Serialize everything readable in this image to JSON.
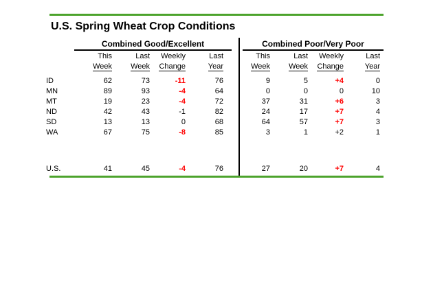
{
  "page": {
    "title": "U.S. Spring Wheat Crop Conditions",
    "accent_green": "#4CA32C",
    "highlight_red": "#FF0000"
  },
  "sections": [
    {
      "id": "good",
      "label": "Combined Good/Excellent"
    },
    {
      "id": "poor",
      "label": "Combined Poor/Very Poor"
    }
  ],
  "headers": {
    "line1": [
      "This",
      "Last",
      "Weekly",
      "Last"
    ],
    "line2": [
      "Week",
      "Week",
      "Change",
      "Year"
    ]
  },
  "rows": [
    {
      "label": "ID",
      "good": {
        "this_week": "62",
        "last_week": "73",
        "change": "-11",
        "change_red": true,
        "last_year": "76"
      },
      "poor": {
        "this_week": "9",
        "last_week": "5",
        "change": "+4",
        "change_red": true,
        "last_year": "0"
      }
    },
    {
      "label": "MN",
      "good": {
        "this_week": "89",
        "last_week": "93",
        "change": "-4",
        "change_red": true,
        "last_year": "64"
      },
      "poor": {
        "this_week": "0",
        "last_week": "0",
        "change": "0",
        "change_red": false,
        "last_year": "10"
      }
    },
    {
      "label": "MT",
      "good": {
        "this_week": "19",
        "last_week": "23",
        "change": "-4",
        "change_red": true,
        "last_year": "72"
      },
      "poor": {
        "this_week": "37",
        "last_week": "31",
        "change": "+6",
        "change_red": true,
        "last_year": "3"
      }
    },
    {
      "label": "ND",
      "good": {
        "this_week": "42",
        "last_week": "43",
        "change": "-1",
        "change_red": false,
        "last_year": "82"
      },
      "poor": {
        "this_week": "24",
        "last_week": "17",
        "change": "+7",
        "change_red": true,
        "last_year": "4"
      }
    },
    {
      "label": "SD",
      "good": {
        "this_week": "13",
        "last_week": "13",
        "change": "0",
        "change_red": false,
        "last_year": "68"
      },
      "poor": {
        "this_week": "64",
        "last_week": "57",
        "change": "+7",
        "change_red": true,
        "last_year": "3"
      }
    },
    {
      "label": "WA",
      "good": {
        "this_week": "67",
        "last_week": "75",
        "change": "-8",
        "change_red": true,
        "last_year": "85"
      },
      "poor": {
        "this_week": "3",
        "last_week": "1",
        "change": "+2",
        "change_red": false,
        "last_year": "1"
      }
    }
  ],
  "summary_row": {
    "label": "U.S.",
    "good": {
      "this_week": "41",
      "last_week": "45",
      "change": "-4",
      "change_red": true,
      "last_year": "76"
    },
    "poor": {
      "this_week": "27",
      "last_week": "20",
      "change": "+7",
      "change_red": true,
      "last_year": "4"
    }
  },
  "chart_data": {
    "type": "table",
    "title": "U.S. Spring Wheat Crop Conditions",
    "sections": [
      {
        "name": "Combined Good/Excellent",
        "columns": [
          "This Week",
          "Last Week",
          "Weekly Change",
          "Last Year"
        ],
        "rows": [
          [
            "ID",
            62,
            73,
            -11,
            76
          ],
          [
            "MN",
            89,
            93,
            -4,
            64
          ],
          [
            "MT",
            19,
            23,
            -4,
            72
          ],
          [
            "ND",
            42,
            43,
            -1,
            82
          ],
          [
            "SD",
            13,
            13,
            0,
            68
          ],
          [
            "WA",
            67,
            75,
            -8,
            85
          ],
          [
            "U.S.",
            41,
            45,
            -4,
            76
          ]
        ]
      },
      {
        "name": "Combined Poor/Very Poor",
        "columns": [
          "This Week",
          "Last Week",
          "Weekly Change",
          "Last Year"
        ],
        "rows": [
          [
            "ID",
            9,
            5,
            4,
            0
          ],
          [
            "MN",
            0,
            0,
            0,
            10
          ],
          [
            "MT",
            37,
            31,
            6,
            3
          ],
          [
            "ND",
            24,
            17,
            7,
            4
          ],
          [
            "SD",
            64,
            57,
            7,
            3
          ],
          [
            "WA",
            3,
            1,
            2,
            1
          ],
          [
            "U.S.",
            27,
            20,
            7,
            4
          ]
        ]
      }
    ]
  }
}
